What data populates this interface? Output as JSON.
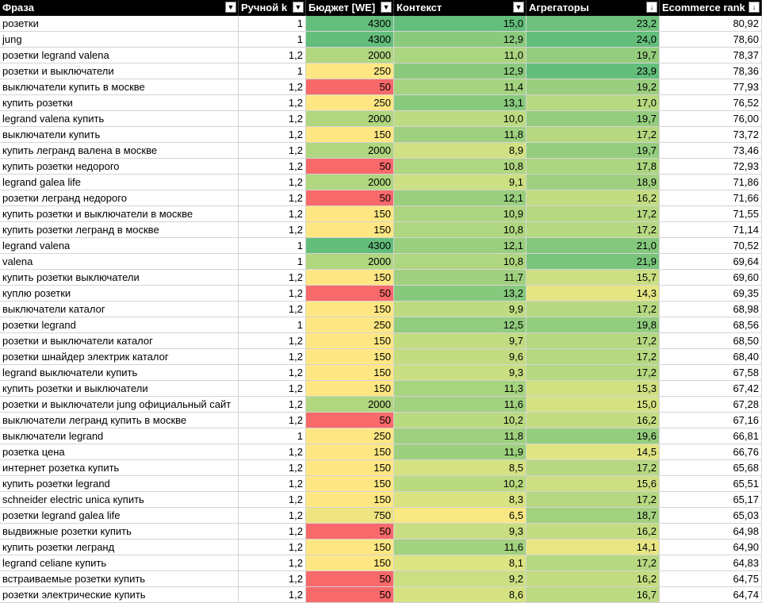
{
  "columns": [
    {
      "label": "Фраза",
      "filter_icon": "dropdown-arrow-icon"
    },
    {
      "label": "Ручной k",
      "filter_icon": "dropdown-arrow-icon"
    },
    {
      "label": "Бюджет [WE]",
      "filter_icon": "dropdown-arrow-icon"
    },
    {
      "label": "Контекст",
      "filter_icon": "dropdown-arrow-icon"
    },
    {
      "label": "Агрегаторы",
      "filter_icon": "sort-descending-icon"
    },
    {
      "label": "Ecommerce rank",
      "filter_icon": "sort-descending-icon"
    }
  ],
  "rows": [
    {
      "phrase": "розетки",
      "k": "1",
      "budget": "4300",
      "context": "15,0",
      "agg": "23,2",
      "rank": "80,92",
      "bc": "#63be7b",
      "cc": "#63be7b",
      "ac": "#6dc17c"
    },
    {
      "phrase": "jung",
      "k": "1",
      "budget": "4300",
      "context": "12,9",
      "agg": "24,0",
      "rank": "78,60",
      "bc": "#63be7b",
      "cc": "#8bca7d",
      "ac": "#63be7b"
    },
    {
      "phrase": "розетки legrand valena",
      "k": "1,2",
      "budget": "2000",
      "context": "11,0",
      "agg": "19,7",
      "rank": "78,37",
      "bc": "#b0d680",
      "cc": "#acd580",
      "ac": "#94cd7e"
    },
    {
      "phrase": "розетки и выключатели",
      "k": "1",
      "budget": "250",
      "context": "12,9",
      "agg": "23,9",
      "rank": "78,36",
      "bc": "#fee783",
      "cc": "#8bca7d",
      "ac": "#64be7b"
    },
    {
      "phrase": "выключатели купить в москве",
      "k": "1,2",
      "budget": "50",
      "context": "11,4",
      "agg": "19,2",
      "rank": "77,93",
      "bc": "#f8696b",
      "cc": "#a5d37f",
      "ac": "#9ace7e"
    },
    {
      "phrase": "купить розетки",
      "k": "1,2",
      "budget": "250",
      "context": "13,1",
      "agg": "17,0",
      "rank": "76,52",
      "bc": "#fee783",
      "cc": "#88c97d",
      "ac": "#b7d981"
    },
    {
      "phrase": "legrand valena купить",
      "k": "1,2",
      "budget": "2000",
      "context": "10,0",
      "agg": "19,7",
      "rank": "76,00",
      "bc": "#b0d680",
      "cc": "#bddb81",
      "ac": "#94cd7e"
    },
    {
      "phrase": "выключатели купить",
      "k": "1,2",
      "budget": "150",
      "context": "11,8",
      "agg": "17,2",
      "rank": "73,72",
      "bc": "#fee783",
      "cc": "#9ed07f",
      "ac": "#b5d881"
    },
    {
      "phrase": "купить легранд валена в москве",
      "k": "1,2",
      "budget": "2000",
      "context": "8,9",
      "agg": "19,7",
      "rank": "73,46",
      "bc": "#b0d680",
      "cc": "#d0e082",
      "ac": "#94cd7e"
    },
    {
      "phrase": "купить розетки недорого",
      "k": "1,2",
      "budget": "50",
      "context": "10,8",
      "agg": "17,8",
      "rank": "72,93",
      "bc": "#f8696b",
      "cc": "#afd680",
      "ac": "#acd580"
    },
    {
      "phrase": "legrand galea life",
      "k": "1,2",
      "budget": "2000",
      "context": "9,1",
      "agg": "18,9",
      "rank": "71,86",
      "bc": "#b0d680",
      "cc": "#cddf82",
      "ac": "#9fd07f"
    },
    {
      "phrase": "розетки легранд недорого",
      "k": "1,2",
      "budget": "50",
      "context": "12,1",
      "agg": "16,2",
      "rank": "71,66",
      "bc": "#f8696b",
      "cc": "#99cf7e",
      "ac": "#c4dc81"
    },
    {
      "phrase": "купить розетки и выключатели в москве",
      "k": "1,2",
      "budget": "150",
      "context": "10,9",
      "agg": "17,2",
      "rank": "71,55",
      "bc": "#fee783",
      "cc": "#add580",
      "ac": "#b5d881"
    },
    {
      "phrase": "купить розетки легранд в москве",
      "k": "1,2",
      "budget": "150",
      "context": "10,8",
      "agg": "17,2",
      "rank": "71,14",
      "bc": "#fee783",
      "cc": "#afd680",
      "ac": "#b5d881"
    },
    {
      "phrase": "legrand valena",
      "k": "1",
      "budget": "4300",
      "context": "12,1",
      "agg": "21,0",
      "rank": "70,52",
      "bc": "#63be7b",
      "cc": "#99cf7e",
      "ac": "#85c87d"
    },
    {
      "phrase": "valena",
      "k": "1",
      "budget": "2000",
      "context": "10,8",
      "agg": "21,9",
      "rank": "69,64",
      "bc": "#b0d680",
      "cc": "#afd680",
      "ac": "#7ac57c"
    },
    {
      "phrase": "купить розетки выключатели",
      "k": "1,2",
      "budget": "150",
      "context": "11,7",
      "agg": "15,7",
      "rank": "69,60",
      "bc": "#fee783",
      "cc": "#a0d07f",
      "ac": "#cbdf82"
    },
    {
      "phrase": "куплю розетки",
      "k": "1,2",
      "budget": "50",
      "context": "13,2",
      "agg": "14,3",
      "rank": "69,35",
      "bc": "#f8696b",
      "cc": "#86c97d",
      "ac": "#e4e583"
    },
    {
      "phrase": "выключатели каталог",
      "k": "1,2",
      "budget": "150",
      "context": "9,9",
      "agg": "17,2",
      "rank": "68,98",
      "bc": "#fee783",
      "cc": "#bfdb81",
      "ac": "#b5d881"
    },
    {
      "phrase": "розетки legrand",
      "k": "1",
      "budget": "250",
      "context": "12,5",
      "agg": "19,8",
      "rank": "68,56",
      "bc": "#fee783",
      "cc": "#92cc7e",
      "ac": "#93cd7e"
    },
    {
      "phrase": "розетки и выключатели каталог",
      "k": "1,2",
      "budget": "150",
      "context": "9,7",
      "agg": "17,2",
      "rank": "68,50",
      "bc": "#fee783",
      "cc": "#c2dc81",
      "ac": "#b5d881"
    },
    {
      "phrase": "розетки шнайдер электрик каталог",
      "k": "1,2",
      "budget": "150",
      "context": "9,6",
      "agg": "17,2",
      "rank": "68,40",
      "bc": "#fee783",
      "cc": "#c4dc81",
      "ac": "#b5d881"
    },
    {
      "phrase": "legrand выключатели купить",
      "k": "1,2",
      "budget": "150",
      "context": "9,3",
      "agg": "17,2",
      "rank": "67,58",
      "bc": "#fee783",
      "cc": "#c9de82",
      "ac": "#b5d881"
    },
    {
      "phrase": "купить розетки и выключатели",
      "k": "1,2",
      "budget": "150",
      "context": "11,3",
      "agg": "15,3",
      "rank": "67,42",
      "bc": "#fee783",
      "cc": "#a7d47f",
      "ac": "#d1e182"
    },
    {
      "phrase": "розетки и выключатели jung официальный сайт",
      "k": "1,2",
      "budget": "2000",
      "context": "11,6",
      "agg": "15,0",
      "rank": "67,28",
      "bc": "#b0d680",
      "cc": "#a2d17f",
      "ac": "#d6e282"
    },
    {
      "phrase": "выключатели легранд купить в москве",
      "k": "1,2",
      "budget": "50",
      "context": "10,2",
      "agg": "16,2",
      "rank": "67,16",
      "bc": "#f8696b",
      "cc": "#bada81",
      "ac": "#c4dc81"
    },
    {
      "phrase": "выключатели legrand",
      "k": "1",
      "budget": "250",
      "context": "11,8",
      "agg": "19,6",
      "rank": "66,81",
      "bc": "#fee783",
      "cc": "#9ed07f",
      "ac": "#95cd7e"
    },
    {
      "phrase": "розетка цена",
      "k": "1,2",
      "budget": "150",
      "context": "11,9",
      "agg": "14,5",
      "rank": "66,76",
      "bc": "#fee783",
      "cc": "#9ccf7e",
      "ac": "#e0e483"
    },
    {
      "phrase": "интернет розетка купить",
      "k": "1,2",
      "budget": "150",
      "context": "8,5",
      "agg": "17,2",
      "rank": "65,68",
      "bc": "#fee783",
      "cc": "#d6e282",
      "ac": "#b5d881"
    },
    {
      "phrase": "купить розетки legrand",
      "k": "1,2",
      "budget": "150",
      "context": "10,2",
      "agg": "15,6",
      "rank": "65,51",
      "bc": "#fee783",
      "cc": "#bada81",
      "ac": "#cddf82"
    },
    {
      "phrase": "schneider electric unica купить",
      "k": "1,2",
      "budget": "150",
      "context": "8,3",
      "agg": "17,2",
      "rank": "65,17",
      "bc": "#fee783",
      "cc": "#d9e382",
      "ac": "#b5d881"
    },
    {
      "phrase": "розетки legrand galea life",
      "k": "1,2",
      "budget": "750",
      "context": "6,5",
      "agg": "18,7",
      "rank": "65,03",
      "bc": "#eee482",
      "cc": "#f7e883",
      "ac": "#a2d17f"
    },
    {
      "phrase": "выдвижные розетки купить",
      "k": "1,2",
      "budget": "50",
      "context": "9,3",
      "agg": "16,2",
      "rank": "64,98",
      "bc": "#f8696b",
      "cc": "#c9de82",
      "ac": "#c4dc81"
    },
    {
      "phrase": "купить розетки легранд",
      "k": "1,2",
      "budget": "150",
      "context": "11,6",
      "agg": "14,1",
      "rank": "64,90",
      "bc": "#fee783",
      "cc": "#a2d17f",
      "ac": "#e8e683"
    },
    {
      "phrase": "legrand celiane купить",
      "k": "1,2",
      "budget": "150",
      "context": "8,1",
      "agg": "17,2",
      "rank": "64,83",
      "bc": "#fee783",
      "cc": "#dde483",
      "ac": "#b5d881"
    },
    {
      "phrase": "встраиваемые розетки купить",
      "k": "1,2",
      "budget": "50",
      "context": "9,2",
      "agg": "16,2",
      "rank": "64,75",
      "bc": "#f8696b",
      "cc": "#cbdf82",
      "ac": "#c4dc81"
    },
    {
      "phrase": "розетки электрические купить",
      "k": "1,2",
      "budget": "50",
      "context": "8,6",
      "agg": "16,7",
      "rank": "64,74",
      "bc": "#f8696b",
      "cc": "#d5e282",
      "ac": "#bcda81"
    }
  ]
}
